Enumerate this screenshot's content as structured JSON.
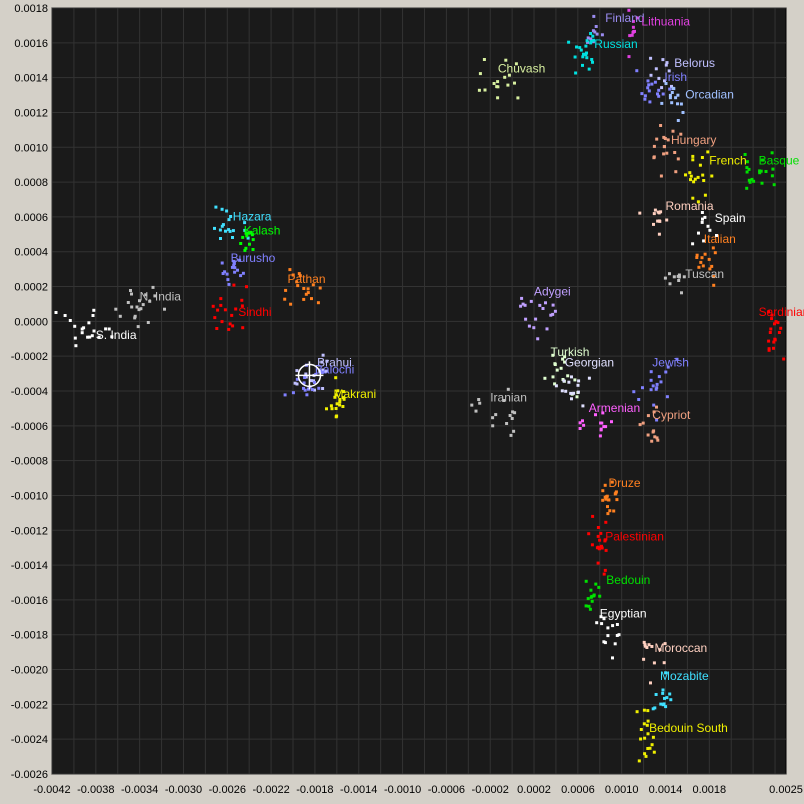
{
  "chart_data": {
    "type": "scatter",
    "title": "",
    "xlabel": "",
    "ylabel": "",
    "xlim": [
      -0.0042,
      0.0025
    ],
    "ylim": [
      -0.0026,
      0.0018
    ],
    "grid": true,
    "background": "#1a1a1a",
    "grid_color": "#333333",
    "x_ticks": [
      "-0.0042",
      "-0.0038",
      "-0.0034",
      "-0.0030",
      "-0.0026",
      "-0.0022",
      "-0.0018",
      "-0.0014",
      "-0.0010",
      "-0.0006",
      "-0.0002",
      "0.0002",
      "0.0006",
      "0.0010",
      "0.0014",
      "0.0018",
      "0.0025"
    ],
    "x_tick_values": [
      -0.0042,
      -0.0038,
      -0.0034,
      -0.003,
      -0.0026,
      -0.0022,
      -0.0018,
      -0.0014,
      -0.001,
      -0.0006,
      -0.0002,
      0.0002,
      0.0006,
      0.001,
      0.0014,
      0.0018,
      0.0025
    ],
    "y_ticks": [
      "0.0018",
      "0.0016",
      "0.0014",
      "0.0012",
      "0.0010",
      "0.0008",
      "0.0006",
      "0.0004",
      "0.0002",
      "0.0000",
      "-0.0002",
      "-0.0004",
      "-0.0006",
      "-0.0008",
      "-0.0010",
      "-0.0012",
      "-0.0014",
      "-0.0016",
      "-0.0018",
      "-0.0020",
      "-0.0022",
      "-0.0024",
      "-0.0026"
    ],
    "y_tick_values": [
      0.0018,
      0.0016,
      0.0014,
      0.0012,
      0.001,
      0.0008,
      0.0006,
      0.0004,
      0.0002,
      0.0,
      -0.0002,
      -0.0004,
      -0.0006,
      -0.0008,
      -0.001,
      -0.0012,
      -0.0014,
      -0.0016,
      -0.0018,
      -0.002,
      -0.0022,
      -0.0024,
      -0.0026
    ],
    "cursor": {
      "x": -0.00185,
      "y": -0.00031
    },
    "series": [
      {
        "name": "Finland",
        "color": "#9b8cf0",
        "cx": 0.00072,
        "cy": 0.00165,
        "sx": 0.0001,
        "sy": 0.0001,
        "n": 10,
        "lx": 0.00085,
        "ly": 0.00172
      },
      {
        "name": "Lithuania",
        "color": "#e040e0",
        "cx": 0.0011,
        "cy": 0.00165,
        "sx": 8e-05,
        "sy": 0.0001,
        "n": 10,
        "lx": 0.00118,
        "ly": 0.0017
      },
      {
        "name": "Russian",
        "color": "#00e0e0",
        "cx": 0.00065,
        "cy": 0.00155,
        "sx": 0.00012,
        "sy": 0.0001,
        "n": 22,
        "lx": 0.00075,
        "ly": 0.00157
      },
      {
        "name": "Chuvash",
        "color": "#d8f0a0",
        "cx": -0.0002,
        "cy": 0.0014,
        "sx": 0.0002,
        "sy": 8e-05,
        "n": 16,
        "lx": -0.00013,
        "ly": 0.00143
      },
      {
        "name": "Belorus",
        "color": "#c0c0ff",
        "cx": 0.0014,
        "cy": 0.00145,
        "sx": 0.0001,
        "sy": 8e-05,
        "n": 12,
        "lx": 0.00148,
        "ly": 0.00146
      },
      {
        "name": "Irish",
        "color": "#8080ff",
        "cx": 0.00125,
        "cy": 0.00135,
        "sx": 0.0001,
        "sy": 8e-05,
        "n": 16,
        "lx": 0.00139,
        "ly": 0.00138
      },
      {
        "name": "Orcadian",
        "color": "#a0c0ff",
        "cx": 0.00148,
        "cy": 0.00125,
        "sx": 0.0001,
        "sy": 8e-05,
        "n": 14,
        "lx": 0.00158,
        "ly": 0.00128
      },
      {
        "name": "Hungary",
        "color": "#f0a080",
        "cx": 0.00135,
        "cy": 0.001,
        "sx": 0.00012,
        "sy": 0.0001,
        "n": 18,
        "lx": 0.00145,
        "ly": 0.00102
      },
      {
        "name": "French",
        "color": "#f0f000",
        "cx": 0.0017,
        "cy": 0.00088,
        "sx": 0.00012,
        "sy": 0.0001,
        "n": 18,
        "lx": 0.0018,
        "ly": 0.0009
      },
      {
        "name": "Basque",
        "color": "#00e000",
        "cx": 0.0022,
        "cy": 0.00088,
        "sx": 0.00012,
        "sy": 8e-05,
        "n": 20,
        "lx": 0.00225,
        "ly": 0.0009
      },
      {
        "name": "Romania",
        "color": "#ffd0c0",
        "cx": 0.0013,
        "cy": 0.0006,
        "sx": 0.0001,
        "sy": 8e-05,
        "n": 12,
        "lx": 0.0014,
        "ly": 0.00064
      },
      {
        "name": "Spain",
        "color": "#ffffff",
        "cx": 0.00175,
        "cy": 0.00055,
        "sx": 0.0001,
        "sy": 8e-05,
        "n": 10,
        "lx": 0.00185,
        "ly": 0.00057
      },
      {
        "name": "Italian",
        "color": "#ff8020",
        "cx": 0.00175,
        "cy": 0.00035,
        "sx": 8e-05,
        "sy": 8e-05,
        "n": 14,
        "lx": 0.00175,
        "ly": 0.00045
      },
      {
        "name": "Tuscan",
        "color": "#c0c0c0",
        "cx": 0.0015,
        "cy": 0.00025,
        "sx": 0.0001,
        "sy": 8e-05,
        "n": 10,
        "lx": 0.00158,
        "ly": 0.00025
      },
      {
        "name": "Sardinian",
        "color": "#ff0000",
        "cx": 0.0024,
        "cy": -5e-05,
        "sx": 0.0001,
        "sy": 0.0001,
        "n": 20,
        "lx": 0.00225,
        "ly": 3e-05
      },
      {
        "name": "Adygei",
        "color": "#c0a0ff",
        "cx": 0.0002,
        "cy": 5e-05,
        "sx": 0.00015,
        "sy": 0.00012,
        "n": 18,
        "lx": 0.0002,
        "ly": 0.00015
      },
      {
        "name": "Jewish",
        "color": "#8080ff",
        "cx": 0.0013,
        "cy": -0.00035,
        "sx": 0.00012,
        "sy": 0.00015,
        "n": 18,
        "lx": 0.00128,
        "ly": -0.00026
      },
      {
        "name": "Turkish",
        "color": "#e0ffd0",
        "cx": 0.00045,
        "cy": -0.0003,
        "sx": 0.00012,
        "sy": 0.00012,
        "n": 18,
        "lx": 0.00035,
        "ly": -0.0002
      },
      {
        "name": "Georgian",
        "color": "#e0e0ff",
        "cx": 0.00055,
        "cy": -0.00038,
        "sx": 0.00012,
        "sy": 8e-05,
        "n": 14,
        "lx": 0.00048,
        "ly": -0.00026
      },
      {
        "name": "Armenian",
        "color": "#ff60ff",
        "cx": 0.00075,
        "cy": -0.00058,
        "sx": 0.00012,
        "sy": 5e-05,
        "n": 14,
        "lx": 0.0007,
        "ly": -0.00052
      },
      {
        "name": "Cypriot",
        "color": "#f0a080",
        "cx": 0.00125,
        "cy": -0.0006,
        "sx": 8e-05,
        "sy": 8e-05,
        "n": 12,
        "lx": 0.00128,
        "ly": -0.00056
      },
      {
        "name": "Iranian",
        "color": "#c0c0c0",
        "cx": -0.0001,
        "cy": -0.00055,
        "sx": 0.00018,
        "sy": 0.00012,
        "n": 16,
        "lx": -0.0002,
        "ly": -0.00046
      },
      {
        "name": "Druze",
        "color": "#ff8020",
        "cx": 0.00088,
        "cy": -0.001,
        "sx": 6e-05,
        "sy": 8e-05,
        "n": 18,
        "lx": 0.00088,
        "ly": -0.00095
      },
      {
        "name": "Palestinian",
        "color": "#ff0000",
        "cx": 0.00078,
        "cy": -0.00128,
        "sx": 6e-05,
        "sy": 0.0001,
        "n": 20,
        "lx": 0.00085,
        "ly": -0.00126
      },
      {
        "name": "Bedouin",
        "color": "#00e000",
        "cx": 0.00072,
        "cy": -0.00158,
        "sx": 6e-05,
        "sy": 8e-05,
        "n": 14,
        "lx": 0.00086,
        "ly": -0.00151
      },
      {
        "name": "Egyptian",
        "color": "#ffffff",
        "cx": 0.00085,
        "cy": -0.00178,
        "sx": 0.0001,
        "sy": 0.00012,
        "n": 14,
        "lx": 0.0008,
        "ly": -0.0017
      },
      {
        "name": "Moroccan",
        "color": "#ffd0c0",
        "cx": 0.00125,
        "cy": -0.00195,
        "sx": 0.0001,
        "sy": 0.00012,
        "n": 12,
        "lx": 0.0013,
        "ly": -0.0019
      },
      {
        "name": "Mozabite",
        "color": "#40e0ff",
        "cx": 0.00135,
        "cy": -0.00215,
        "sx": 8e-05,
        "sy": 0.0001,
        "n": 14,
        "lx": 0.00135,
        "ly": -0.00206
      },
      {
        "name": "Bedouin South",
        "color": "#f0f000",
        "cx": 0.0012,
        "cy": -0.0024,
        "sx": 8e-05,
        "sy": 0.00012,
        "n": 18,
        "lx": 0.00125,
        "ly": -0.00236
      },
      {
        "name": "Hazara",
        "color": "#40e0ff",
        "cx": -0.00262,
        "cy": 0.00055,
        "sx": 0.00012,
        "sy": 8e-05,
        "n": 18,
        "lx": -0.00255,
        "ly": 0.00058
      },
      {
        "name": "Kalash",
        "color": "#00ff00",
        "cx": -0.00245,
        "cy": 0.00048,
        "sx": 8e-05,
        "sy": 6e-05,
        "n": 12,
        "lx": -0.00245,
        "ly": 0.0005
      },
      {
        "name": "Burusho",
        "color": "#8080ff",
        "cx": -0.00255,
        "cy": 0.0003,
        "sx": 0.0001,
        "sy": 8e-05,
        "n": 16,
        "lx": -0.00257,
        "ly": 0.00034
      },
      {
        "name": "Pathan",
        "color": "#ff8020",
        "cx": -0.00195,
        "cy": 0.0002,
        "sx": 0.00015,
        "sy": 8e-05,
        "n": 18,
        "lx": -0.00205,
        "ly": 0.00022
      },
      {
        "name": "N. India",
        "color": "#c0c0c0",
        "cx": -0.0034,
        "cy": 0.0001,
        "sx": 0.00018,
        "sy": 0.0001,
        "n": 20,
        "lx": -0.0034,
        "ly": 0.00012
      },
      {
        "name": "Sindhi",
        "color": "#ff0000",
        "cx": -0.00255,
        "cy": 5e-05,
        "sx": 0.00018,
        "sy": 0.00012,
        "n": 18,
        "lx": -0.0025,
        "ly": 3e-05
      },
      {
        "name": "S. India",
        "color": "#ffffff",
        "cx": -0.00385,
        "cy": -5e-05,
        "sx": 0.0002,
        "sy": 0.0001,
        "n": 20,
        "lx": -0.0038,
        "ly": -0.0001
      },
      {
        "name": "Brahui",
        "color": "#c0c0ff",
        "cx": -0.00185,
        "cy": -0.0003,
        "sx": 0.00012,
        "sy": 8e-05,
        "n": 18,
        "lx": -0.00178,
        "ly": -0.00026
      },
      {
        "name": "Balochi",
        "color": "#8080ff",
        "cx": -0.0019,
        "cy": -0.00035,
        "sx": 0.00012,
        "sy": 8e-05,
        "n": 16,
        "lx": -0.0018,
        "ly": -0.0003
      },
      {
        "name": "Makrani",
        "color": "#f0f000",
        "cx": -0.0016,
        "cy": -0.00048,
        "sx": 8e-05,
        "sy": 0.0001,
        "n": 18,
        "lx": -0.00163,
        "ly": -0.00044
      }
    ]
  }
}
